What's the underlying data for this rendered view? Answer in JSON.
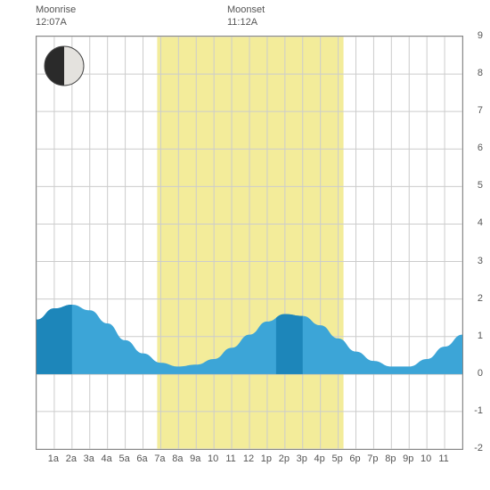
{
  "labels": {
    "moonrise_label": "Moonrise",
    "moonrise_time": "12:07A",
    "moonset_label": "Moonset",
    "moonset_time": "11:12A"
  },
  "chart": {
    "type": "area",
    "x_categories": [
      "1a",
      "2a",
      "3a",
      "4a",
      "5a",
      "6a",
      "7a",
      "8a",
      "9a",
      "10",
      "11",
      "12",
      "1p",
      "2p",
      "3p",
      "4p",
      "5p",
      "6p",
      "7p",
      "8p",
      "9p",
      "10",
      "11"
    ],
    "x_count": 24,
    "y_min": -2,
    "y_max": 9,
    "y_tick_step": 1,
    "colors": {
      "background": "#ffffff",
      "grid": "#cccccc",
      "border": "#888888",
      "daylight_band": "#f3ec9a",
      "tide_light": "#3ca5d7",
      "tide_dark": "#1d86ba",
      "text": "#555555",
      "moon_dark": "#2a2a2a",
      "moon_light": "#e4e2de"
    },
    "daylight": {
      "start_hour": 6.8,
      "end_hour": 17.3
    },
    "tide_curve": [
      {
        "x": 0,
        "y": 1.45
      },
      {
        "x": 1,
        "y": 1.75
      },
      {
        "x": 2,
        "y": 1.85
      },
      {
        "x": 3,
        "y": 1.7
      },
      {
        "x": 4,
        "y": 1.35
      },
      {
        "x": 5,
        "y": 0.9
      },
      {
        "x": 6,
        "y": 0.55
      },
      {
        "x": 7,
        "y": 0.3
      },
      {
        "x": 8,
        "y": 0.2
      },
      {
        "x": 9,
        "y": 0.25
      },
      {
        "x": 10,
        "y": 0.4
      },
      {
        "x": 11,
        "y": 0.7
      },
      {
        "x": 12,
        "y": 1.05
      },
      {
        "x": 13,
        "y": 1.4
      },
      {
        "x": 14,
        "y": 1.6
      },
      {
        "x": 15,
        "y": 1.55
      },
      {
        "x": 16,
        "y": 1.3
      },
      {
        "x": 17,
        "y": 0.95
      },
      {
        "x": 18,
        "y": 0.6
      },
      {
        "x": 19,
        "y": 0.35
      },
      {
        "x": 20,
        "y": 0.2
      },
      {
        "x": 21,
        "y": 0.2
      },
      {
        "x": 22,
        "y": 0.4
      },
      {
        "x": 23,
        "y": 0.73
      },
      {
        "x": 24,
        "y": 1.05
      }
    ],
    "dark_segments": [
      {
        "start": 0,
        "end": 2
      },
      {
        "start": 13.5,
        "end": 15
      }
    ],
    "moon": {
      "phase": "last-quarter",
      "illumination_left_dark": true
    }
  }
}
